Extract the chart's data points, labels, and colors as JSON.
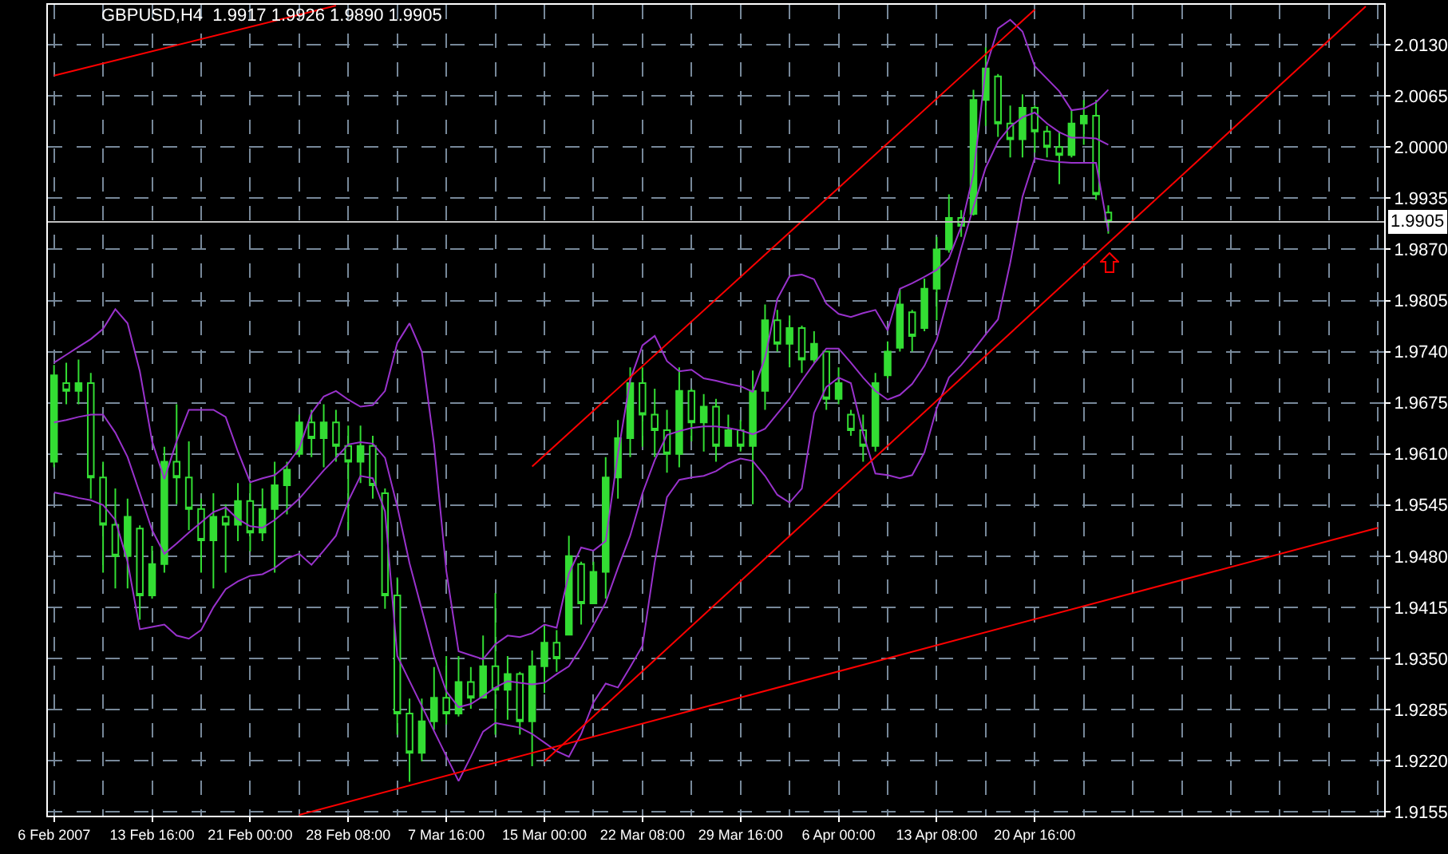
{
  "chart_data": {
    "type": "candlestick",
    "title": "GBPUSD,H4  1.9917 1.9926 1.9890 1.9905",
    "color": "#33dd33",
    "categories": [
      "6 Feb 2007",
      null,
      null,
      null,
      null,
      null,
      null,
      null,
      "13 Feb 16:00",
      null,
      null,
      null,
      null,
      null,
      null,
      null,
      "21 Feb 00:00",
      null,
      null,
      null,
      null,
      null,
      null,
      null,
      "28 Feb 08:00",
      null,
      null,
      null,
      null,
      null,
      null,
      null,
      "7 Mar 16:00",
      null,
      null,
      null,
      null,
      null,
      null,
      null,
      "15 Mar 00:00",
      null,
      null,
      null,
      null,
      null,
      null,
      null,
      "22 Mar 08:00",
      null,
      null,
      null,
      null,
      null,
      null,
      null,
      "29 Mar 16:00",
      null,
      null,
      null,
      null,
      null,
      null,
      null,
      "6 Apr 00:00",
      null,
      null,
      null,
      null,
      null,
      null,
      null,
      "13 Apr 08:00",
      null,
      null,
      null,
      null,
      null,
      null,
      null,
      "20 Apr 16:00",
      null,
      null,
      null,
      null,
      null,
      null,
      null,
      null,
      null,
      null,
      null,
      null,
      null,
      null,
      null,
      null,
      null,
      null,
      null,
      null,
      null,
      null,
      null,
      null,
      null,
      null,
      null,
      null
    ],
    "ohlc": [
      [
        1.96,
        1.9723,
        1.9593,
        1.971
      ],
      [
        1.97,
        1.9726,
        1.9673,
        1.969
      ],
      [
        1.969,
        1.973,
        1.9673,
        1.97
      ],
      [
        1.97,
        1.9713,
        1.9553,
        1.958
      ],
      [
        1.958,
        1.96,
        1.9459,
        1.952
      ],
      [
        1.952,
        1.9566,
        1.9439,
        1.948
      ],
      [
        1.948,
        1.9553,
        1.9439,
        1.953
      ],
      [
        1.9515,
        1.9519,
        1.9399,
        1.943
      ],
      [
        1.943,
        1.9493,
        1.9426,
        1.947
      ],
      [
        1.947,
        1.9619,
        1.9459,
        1.96
      ],
      [
        1.96,
        1.9673,
        1.9546,
        1.958
      ],
      [
        1.958,
        1.9626,
        1.9513,
        1.954
      ],
      [
        1.954,
        1.9553,
        1.9459,
        1.95
      ],
      [
        1.95,
        1.956,
        1.9439,
        1.953
      ],
      [
        1.953,
        1.9546,
        1.9459,
        1.952
      ],
      [
        1.952,
        1.9573,
        1.9499,
        1.955
      ],
      [
        1.955,
        1.9573,
        1.9486,
        1.951
      ],
      [
        1.951,
        1.9566,
        1.9499,
        1.954
      ],
      [
        1.954,
        1.96,
        1.9459,
        1.957
      ],
      [
        1.957,
        1.96,
        1.9533,
        1.959
      ],
      [
        1.961,
        1.966,
        1.9606,
        1.965
      ],
      [
        1.965,
        1.9666,
        1.9606,
        1.963
      ],
      [
        1.963,
        1.9673,
        1.9593,
        1.965
      ],
      [
        1.965,
        1.9666,
        1.96,
        1.962
      ],
      [
        1.962,
        1.9646,
        1.9513,
        1.96
      ],
      [
        1.96,
        1.9646,
        1.9573,
        1.962
      ],
      [
        1.962,
        1.9633,
        1.9553,
        1.957
      ],
      [
        1.956,
        1.9566,
        1.9413,
        1.943
      ],
      [
        1.943,
        1.9453,
        1.9253,
        1.928
      ],
      [
        1.928,
        1.9299,
        1.9193,
        1.923
      ],
      [
        1.923,
        1.9299,
        1.9219,
        1.927
      ],
      [
        1.927,
        1.9339,
        1.9259,
        1.93
      ],
      [
        1.93,
        1.9353,
        1.9266,
        1.928
      ],
      [
        1.928,
        1.9353,
        1.9276,
        1.932
      ],
      [
        1.932,
        1.9339,
        1.9286,
        1.93
      ],
      [
        1.93,
        1.9379,
        1.9299,
        1.934
      ],
      [
        1.934,
        1.9433,
        1.9253,
        1.931
      ],
      [
        1.931,
        1.9353,
        1.9272,
        1.933
      ],
      [
        1.933,
        1.9333,
        1.9253,
        1.927
      ],
      [
        1.927,
        1.936,
        1.9213,
        1.934
      ],
      [
        1.934,
        1.9393,
        1.9306,
        1.937
      ],
      [
        1.937,
        1.9386,
        1.9333,
        1.935
      ],
      [
        1.938,
        1.9506,
        1.9379,
        1.948
      ],
      [
        1.947,
        1.9473,
        1.9393,
        1.942
      ],
      [
        1.942,
        1.9473,
        1.9419,
        1.946
      ],
      [
        1.946,
        1.9606,
        1.9426,
        1.958
      ],
      [
        1.958,
        1.9653,
        1.9553,
        1.963
      ],
      [
        1.963,
        1.972,
        1.9606,
        1.97
      ],
      [
        1.97,
        1.972,
        1.9619,
        1.966
      ],
      [
        1.966,
        1.9693,
        1.9606,
        1.964
      ],
      [
        1.964,
        1.9666,
        1.9586,
        1.961
      ],
      [
        1.961,
        1.972,
        1.9593,
        1.969
      ],
      [
        1.969,
        1.9693,
        1.9626,
        1.965
      ],
      [
        1.965,
        1.9686,
        1.9613,
        1.967
      ],
      [
        1.967,
        1.968,
        1.96,
        1.962
      ],
      [
        1.962,
        1.966,
        1.9619,
        1.964
      ],
      [
        1.964,
        1.9653,
        1.9613,
        1.962
      ],
      [
        1.962,
        1.9716,
        1.9546,
        1.969
      ],
      [
        1.969,
        1.98,
        1.9666,
        1.978
      ],
      [
        1.978,
        1.9793,
        1.974,
        1.975
      ],
      [
        1.975,
        1.9786,
        1.972,
        1.977
      ],
      [
        1.977,
        1.9773,
        1.9713,
        1.973
      ],
      [
        1.973,
        1.9766,
        1.9726,
        1.975
      ],
      [
        1.974,
        1.974,
        1.9666,
        1.968
      ],
      [
        1.968,
        1.972,
        1.9673,
        1.97
      ],
      [
        1.966,
        1.9666,
        1.9633,
        1.964
      ],
      [
        1.964,
        1.966,
        1.96,
        1.962
      ],
      [
        1.962,
        1.9713,
        1.9613,
        1.97
      ],
      [
        1.971,
        1.9753,
        1.9706,
        1.974
      ],
      [
        1.9745,
        1.982,
        1.974,
        1.98
      ],
      [
        1.979,
        1.9793,
        1.974,
        1.976
      ],
      [
        1.977,
        1.9833,
        1.9766,
        1.982
      ],
      [
        1.982,
        1.9886,
        1.978,
        1.987
      ],
      [
        1.987,
        1.994,
        1.9866,
        1.991
      ],
      [
        1.991,
        1.992,
        1.9886,
        1.99
      ],
      [
        1.9915,
        2.0073,
        1.9913,
        2.006
      ],
      [
        2.006,
        2.0127,
        2.0027,
        2.01
      ],
      [
        2.009,
        2.0093,
        2.0013,
        2.003
      ],
      [
        2.003,
        2.0053,
        1.9987,
        2.001
      ],
      [
        2.001,
        2.0067,
        1.9987,
        2.005
      ],
      [
        2.005,
        2.0053,
        1.9993,
        2.002
      ],
      [
        2.002,
        2.0027,
        1.9987,
        2.0
      ],
      [
        2.0,
        2.002,
        1.9953,
        1.999
      ],
      [
        1.999,
        2.0047,
        1.9987,
        2.003
      ],
      [
        2.003,
        2.006,
        2.0003,
        2.004
      ],
      [
        2.004,
        2.006,
        1.9933,
        1.994
      ],
      [
        1.9917,
        1.9926,
        1.989,
        1.9905
      ],
      null,
      null,
      null,
      null,
      null,
      null,
      null,
      null,
      null,
      null,
      null,
      null,
      null,
      null,
      null,
      null,
      null,
      null,
      null,
      null,
      null,
      null
    ],
    "series": [
      {
        "type": "line",
        "color": "#9932cc",
        "values": [
          1.9726,
          1.9736,
          1.9746,
          1.9756,
          1.9769,
          1.9794,
          1.9776,
          1.9715,
          1.9626,
          1.9578,
          1.9626,
          1.9666,
          1.9666,
          1.9666,
          1.9657,
          1.9613,
          1.9574,
          1.9579,
          1.9583,
          1.9596,
          1.9617,
          1.9662,
          1.9683,
          1.969,
          1.9679,
          1.967,
          1.9672,
          1.969,
          1.9751,
          1.9776,
          1.974,
          1.9622,
          1.9461,
          1.9359,
          1.9354,
          1.9349,
          1.9368,
          1.9379,
          1.9377,
          1.9382,
          1.9393,
          1.9389,
          1.9458,
          1.9491,
          1.9487,
          1.9499,
          1.961,
          1.9704,
          1.9748,
          1.976,
          1.9728,
          1.9715,
          1.9717,
          1.9706,
          1.9703,
          1.9699,
          1.9696,
          1.9689,
          1.9732,
          1.9807,
          1.9836,
          1.9838,
          1.9832,
          1.9801,
          1.9788,
          1.9784,
          1.9789,
          1.9793,
          1.9767,
          1.982,
          1.9827,
          1.9835,
          1.9844,
          1.9859,
          1.9899,
          1.9966,
          2.01,
          2.0151,
          2.0162,
          2.0147,
          2.0103,
          2.0087,
          2.0071,
          2.0047,
          2.0049,
          2.0057,
          2.0073,
          null,
          null,
          null,
          null,
          null,
          null,
          null,
          null,
          null,
          null,
          null,
          null,
          null,
          null,
          null,
          null,
          null,
          null,
          null,
          null,
          null,
          null
        ]
      },
      {
        "type": "line",
        "color": "#9932cc",
        "values": [
          1.965,
          1.9653,
          1.9657,
          1.966,
          1.966,
          1.9637,
          1.9606,
          1.956,
          1.9513,
          1.9483,
          1.9496,
          1.951,
          1.9523,
          1.9536,
          1.9542,
          1.9527,
          1.9518,
          1.9516,
          1.9526,
          1.9539,
          1.9553,
          1.9571,
          1.9589,
          1.9605,
          1.9622,
          1.9625,
          1.9623,
          1.9605,
          1.9543,
          1.9471,
          1.9412,
          1.9353,
          1.9308,
          1.9288,
          1.9292,
          1.9302,
          1.9313,
          1.9321,
          1.9319,
          1.9317,
          1.9319,
          1.933,
          1.934,
          1.9364,
          1.9392,
          1.9421,
          1.9465,
          1.9506,
          1.956,
          1.9602,
          1.9634,
          1.9639,
          1.9643,
          1.9645,
          1.9645,
          1.9643,
          1.964,
          1.9635,
          1.9642,
          1.9661,
          1.968,
          1.9703,
          1.9725,
          1.9744,
          1.9744,
          1.9726,
          1.9707,
          1.969,
          1.9679,
          1.9685,
          1.9699,
          1.9722,
          1.9755,
          1.9813,
          1.9871,
          1.9924,
          1.9974,
          2.0007,
          2.0026,
          2.0038,
          2.0044,
          2.003,
          2.0019,
          2.0012,
          2.0012,
          2.0011,
          2.0003,
          null,
          null,
          null,
          null,
          null,
          null,
          null,
          null,
          null,
          null,
          null,
          null,
          null,
          null,
          null,
          null,
          null,
          null,
          null,
          null,
          null,
          null
        ]
      },
      {
        "type": "line",
        "color": "#9932cc",
        "values": [
          1.9561,
          1.9558,
          1.9554,
          1.9551,
          1.9545,
          1.9526,
          1.9473,
          1.9387,
          1.939,
          1.9393,
          1.9379,
          1.9375,
          1.9386,
          1.9415,
          1.9438,
          1.9448,
          1.9455,
          1.9457,
          1.9465,
          1.9477,
          1.9483,
          1.9469,
          1.9487,
          1.9506,
          1.955,
          1.9582,
          1.9579,
          1.9537,
          1.9353,
          null,
          null,
          null,
          null,
          1.9194,
          1.9225,
          1.9257,
          1.9268,
          1.9265,
          1.9262,
          1.9254,
          1.9243,
          1.9232,
          1.9225,
          1.9254,
          1.9294,
          1.9318,
          1.9313,
          1.9339,
          1.9366,
          1.9472,
          1.9555,
          1.9577,
          1.958,
          1.9582,
          1.9588,
          1.9598,
          1.9604,
          1.9601,
          1.9582,
          1.9558,
          1.9548,
          1.9566,
          1.9662,
          1.9695,
          1.9707,
          1.97,
          1.9636,
          1.9585,
          1.9583,
          1.9579,
          1.9583,
          1.9612,
          1.9668,
          1.9707,
          1.9723,
          1.9742,
          1.9762,
          1.9781,
          1.9853,
          1.9937,
          1.9986,
          1.9983,
          1.9981,
          1.998,
          1.998,
          1.998,
          1.9893,
          null,
          null,
          null,
          null,
          null,
          null,
          null,
          null,
          null,
          null,
          null,
          null,
          null,
          null,
          null,
          null,
          null,
          null,
          null,
          null,
          null,
          null
        ]
      },
      {
        "type": "line",
        "color": "#ff0000",
        "values": [
          2.0091,
          null,
          null,
          null,
          null,
          null,
          null,
          null,
          null,
          null,
          null,
          null,
          null,
          null,
          null,
          null,
          null,
          null,
          null,
          null,
          null,
          null,
          null,
          2.018,
          null,
          null,
          null,
          null,
          null,
          null,
          null,
          null,
          null,
          null,
          null,
          null,
          null,
          null,
          null,
          null,
          null,
          null,
          null,
          null,
          null,
          null,
          null,
          null,
          null,
          null,
          null,
          null,
          null,
          null,
          null,
          null,
          null,
          null,
          null,
          null,
          null,
          null,
          null,
          null,
          null,
          null,
          null,
          null,
          null,
          null,
          null,
          null,
          null,
          null,
          null,
          null,
          null,
          null,
          null,
          null,
          null,
          null,
          null,
          null,
          null,
          null,
          null,
          null,
          null,
          null,
          null,
          null,
          null,
          null,
          null,
          null,
          null,
          null,
          null,
          null,
          null,
          null,
          null,
          null,
          null,
          null,
          null,
          null,
          null
        ]
      },
      {
        "type": "line",
        "color": "#ff0000",
        "values": [
          null,
          null,
          null,
          null,
          null,
          null,
          null,
          null,
          null,
          null,
          null,
          null,
          null,
          null,
          null,
          null,
          null,
          null,
          null,
          null,
          null,
          null,
          null,
          null,
          null,
          null,
          null,
          null,
          null,
          null,
          null,
          null,
          null,
          null,
          null,
          null,
          null,
          null,
          null,
          1.9594,
          null,
          null,
          null,
          null,
          null,
          null,
          null,
          null,
          null,
          null,
          null,
          null,
          null,
          null,
          null,
          null,
          null,
          null,
          null,
          null,
          null,
          null,
          null,
          null,
          null,
          null,
          null,
          null,
          null,
          null,
          null,
          null,
          null,
          null,
          null,
          null,
          null,
          null,
          null,
          null,
          2.0175,
          null,
          null,
          null,
          null,
          null,
          null,
          null,
          null,
          null,
          null,
          null,
          null,
          null,
          null,
          null,
          null,
          null,
          null,
          null,
          null,
          null,
          null,
          null,
          null,
          null,
          null,
          null,
          null
        ]
      },
      {
        "type": "line",
        "color": "#ff0000",
        "values": [
          null,
          null,
          null,
          null,
          null,
          null,
          null,
          null,
          null,
          null,
          null,
          null,
          null,
          null,
          null,
          null,
          null,
          null,
          null,
          null,
          null,
          null,
          null,
          null,
          null,
          null,
          null,
          null,
          null,
          null,
          null,
          null,
          null,
          null,
          null,
          null,
          null,
          null,
          null,
          null,
          1.9219,
          null,
          null,
          null,
          null,
          null,
          null,
          null,
          null,
          null,
          null,
          null,
          null,
          null,
          null,
          null,
          null,
          null,
          null,
          null,
          null,
          null,
          null,
          null,
          null,
          null,
          null,
          null,
          null,
          null,
          null,
          null,
          null,
          null,
          null,
          null,
          null,
          null,
          null,
          null,
          null,
          null,
          null,
          null,
          null,
          null,
          null,
          null,
          null,
          null,
          null,
          null,
          null,
          null,
          null,
          null,
          null,
          null,
          null,
          null,
          null,
          null,
          null,
          null,
          null,
          null,
          null,
          2.0179,
          null
        ]
      },
      {
        "type": "line",
        "color": "#ff0000",
        "values": [
          null,
          null,
          null,
          null,
          null,
          null,
          null,
          null,
          null,
          null,
          null,
          null,
          null,
          null,
          null,
          null,
          null,
          null,
          null,
          null,
          1.9151,
          null,
          null,
          null,
          null,
          null,
          null,
          null,
          null,
          null,
          null,
          null,
          null,
          null,
          null,
          null,
          null,
          null,
          null,
          null,
          null,
          null,
          null,
          null,
          null,
          null,
          null,
          null,
          null,
          null,
          null,
          null,
          null,
          null,
          null,
          null,
          null,
          null,
          null,
          null,
          null,
          null,
          null,
          null,
          null,
          null,
          null,
          null,
          null,
          null,
          null,
          null,
          null,
          null,
          null,
          null,
          null,
          null,
          null,
          null,
          null,
          null,
          null,
          null,
          null,
          null,
          null,
          null,
          null,
          null,
          null,
          null,
          null,
          null,
          null,
          null,
          null,
          null,
          null,
          null,
          null,
          null,
          null,
          null,
          null,
          null,
          null,
          null,
          1.9516
        ]
      }
    ],
    "ylim": [
      1.915,
      2.0181
    ],
    "yticks": [
      1.9155,
      {
        "value": 1.922,
        "label": "1.9220"
      },
      1.9285,
      {
        "value": 1.935,
        "label": "1.9350"
      },
      1.9415,
      {
        "value": 1.948,
        "label": "1.9480"
      },
      1.9545,
      {
        "value": 1.961,
        "label": "1.9610"
      },
      1.9675,
      {
        "value": 1.974,
        "label": "1.9740"
      },
      1.9805,
      {
        "value": 1.987,
        "label": "1.9870"
      },
      1.9935,
      {
        "value": 2,
        "label": "2.0000"
      },
      2.0065,
      {
        "value": 2.013,
        "label": "2.0130"
      }
    ],
    "grid": true,
    "ref_lines": [
      {
        "axis": "y",
        "value": 1.9905,
        "label": "1.9905",
        "color": "#c0c0c0"
      }
    ]
  }
}
